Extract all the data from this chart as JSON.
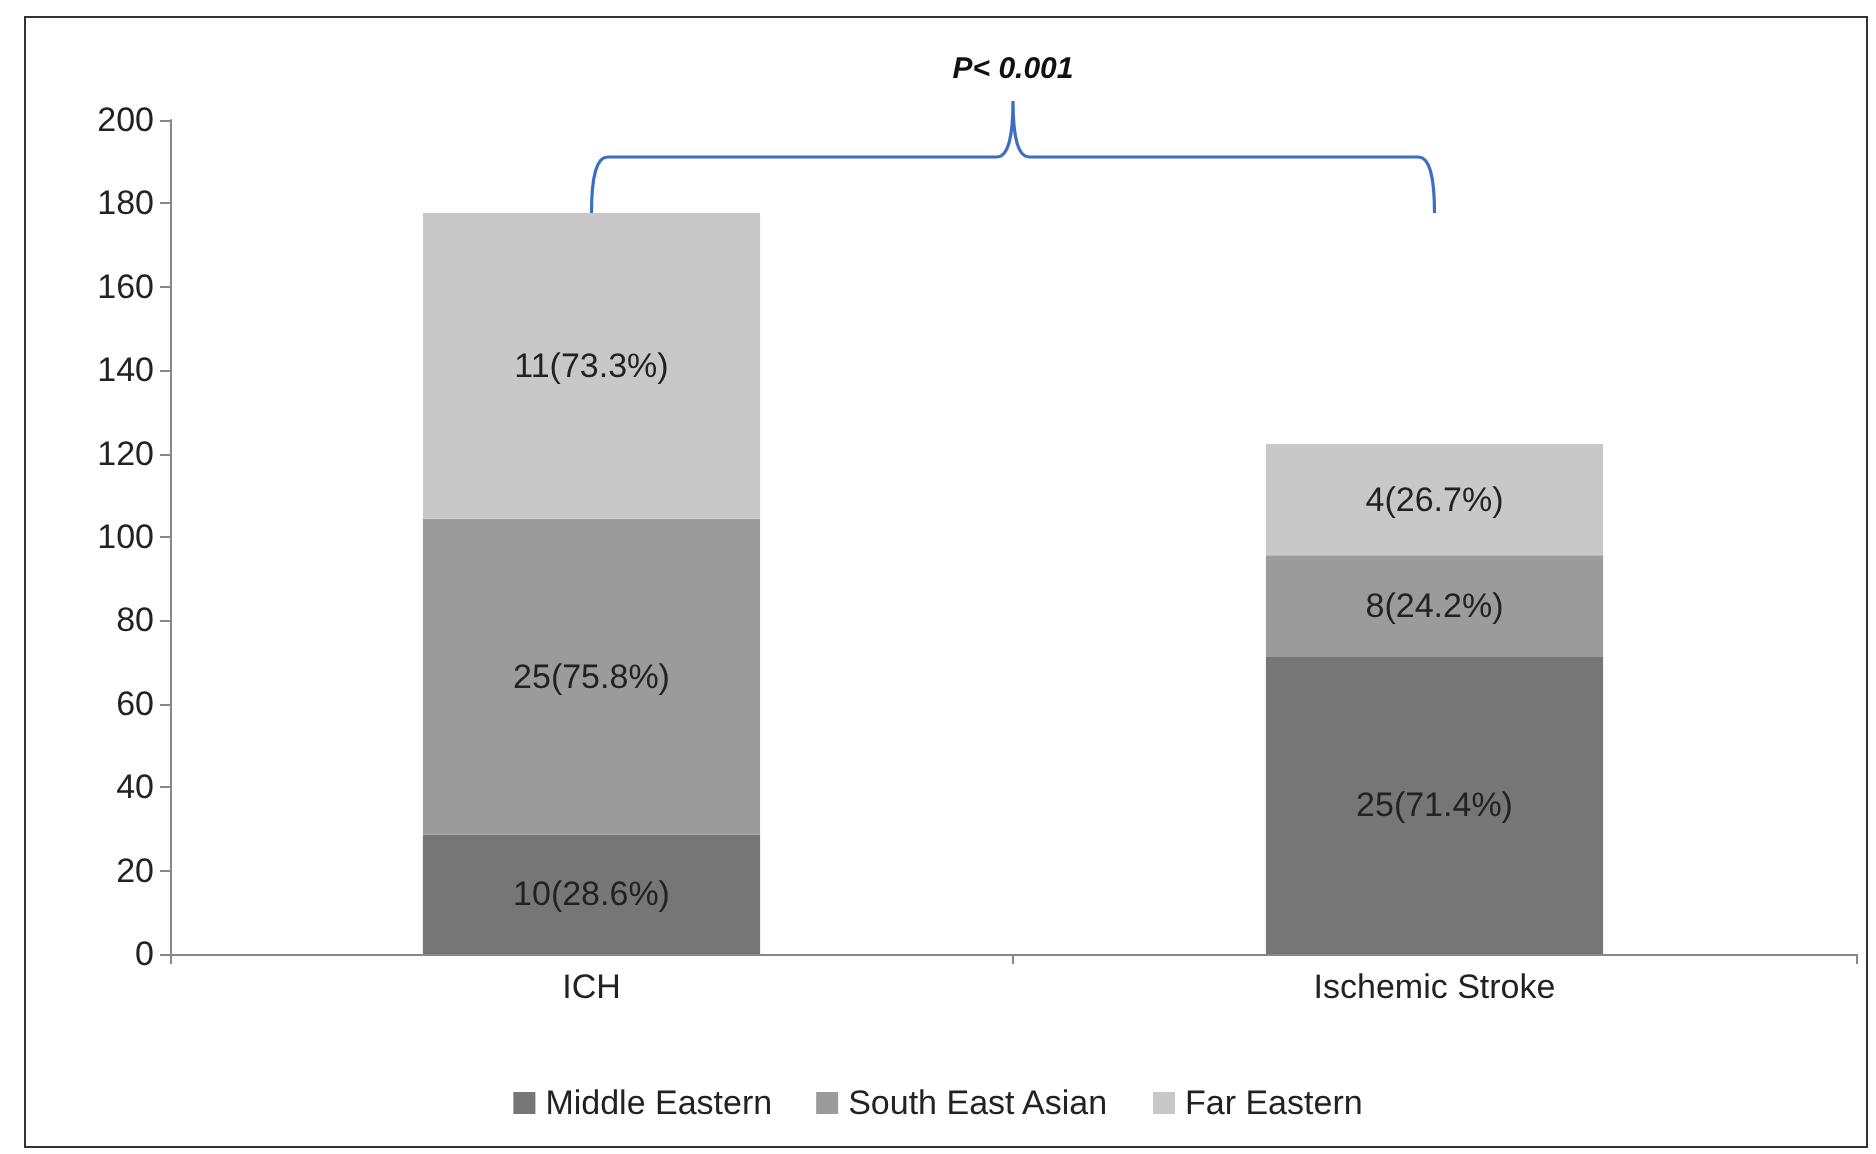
{
  "chart_data": {
    "type": "bar",
    "stacked": true,
    "categories": [
      "ICH",
      "Ischemic Stroke"
    ],
    "series": [
      {
        "name": "Middle Eastern",
        "color": "#767676",
        "values": [
          28.6,
          71.4
        ],
        "value_labels": [
          "10(28.6%)",
          "25(71.4%)"
        ]
      },
      {
        "name": "South East Asian",
        "color": "#9b9b9b",
        "values": [
          75.8,
          24.2
        ],
        "value_labels": [
          "25(75.8%)",
          "8(24.2%)"
        ]
      },
      {
        "name": "Far Eastern",
        "color": "#c8c8c8",
        "values": [
          73.3,
          26.7
        ],
        "value_labels": [
          "11(73.3%)",
          "4(26.7%)"
        ]
      }
    ],
    "ylim": [
      0,
      200
    ],
    "yticks": [
      0,
      20,
      40,
      60,
      80,
      100,
      120,
      140,
      160,
      180,
      200
    ],
    "grid": false,
    "legend": "bottom",
    "annotations": [
      "P< 0.001"
    ]
  }
}
